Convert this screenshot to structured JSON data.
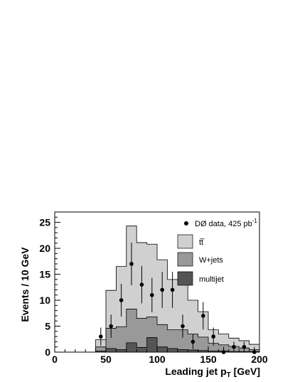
{
  "chart_data": {
    "type": "histogram-stacked",
    "xlabel": {
      "main": "Leading jet p",
      "sub": "T",
      "unit": " [GeV]"
    },
    "ylabel": "Events / 10 GeV",
    "xlim": [
      0,
      200
    ],
    "ylim": [
      0,
      27
    ],
    "x_ticks": [
      "0",
      "50",
      "100",
      "150",
      "200"
    ],
    "y_ticks": [
      "0",
      "5",
      "10",
      "15",
      "20",
      "25"
    ],
    "bin_edges": [
      40,
      50,
      60,
      70,
      80,
      90,
      100,
      110,
      120,
      130,
      140,
      150,
      160,
      170,
      180,
      190,
      200
    ],
    "stacks": [
      {
        "name": "multijet",
        "color": "#555555",
        "values": [
          0.2,
          0.7,
          0.5,
          1.8,
          0.9,
          2.8,
          1.0,
          0.7,
          0.5,
          0.4,
          0.3,
          0.2,
          0.2,
          0.1,
          0.1,
          0.1
        ]
      },
      {
        "name": "W+jets",
        "color": "#999999",
        "values": [
          0.8,
          3.9,
          4.4,
          6.5,
          5.6,
          4.0,
          4.3,
          3.6,
          3.8,
          3.1,
          2.6,
          1.5,
          1.2,
          1.0,
          0.7,
          0.4
        ]
      },
      {
        "name": "tt̅",
        "color": "#d0d0d0",
        "values": [
          1.4,
          7.3,
          11.6,
          16.0,
          14.6,
          14.0,
          12.5,
          9.7,
          9.5,
          6.5,
          4.9,
          2.6,
          2.1,
          1.6,
          1.4,
          1.0
        ]
      }
    ],
    "data_points": {
      "name": "DØ data, 425 pb",
      "sup": "-1",
      "x": [
        45,
        55,
        65,
        75,
        85,
        95,
        105,
        115,
        125,
        135,
        145,
        155,
        165,
        175,
        185,
        195
      ],
      "y": [
        3,
        5,
        10,
        17,
        13,
        11,
        12,
        12,
        5,
        2,
        7,
        3,
        0,
        1,
        1,
        0
      ]
    },
    "legend": [
      {
        "label": "tt̅",
        "color": "#d0d0d0"
      },
      {
        "label": "W+jets",
        "color": "#999999"
      },
      {
        "label": "multijet",
        "color": "#555555"
      }
    ]
  }
}
